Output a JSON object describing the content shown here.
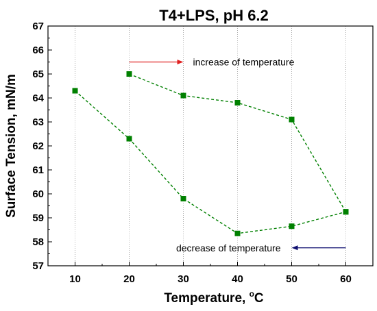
{
  "chart_data": {
    "type": "scatter",
    "title": "T4+LPS, pH 6.2",
    "xlabel_main": "Temperature, ",
    "xlabel_unit": "C",
    "xlabel_degree": "o",
    "ylabel": "Surface Tension, mN/m",
    "xlim": [
      5,
      65
    ],
    "ylim": [
      57,
      67
    ],
    "xticks": [
      10,
      20,
      30,
      40,
      50,
      60
    ],
    "yticks": [
      57,
      58,
      59,
      60,
      61,
      62,
      63,
      64,
      65,
      66,
      67
    ],
    "grid": "vertical-dotted",
    "series": [
      {
        "color": "#008000",
        "line_style": "dashed",
        "marker": "square",
        "points": [
          [
            20,
            65.0
          ],
          [
            30,
            64.1
          ],
          [
            40,
            63.8
          ],
          [
            50,
            63.1
          ],
          [
            60,
            59.25
          ]
        ]
      },
      {
        "color": "#008000",
        "line_style": "dashed",
        "marker": "square",
        "points": [
          [
            10,
            64.3
          ],
          [
            20,
            62.3
          ],
          [
            30,
            59.8
          ],
          [
            40,
            58.35
          ],
          [
            50,
            58.65
          ],
          [
            60,
            59.25
          ]
        ]
      }
    ],
    "annotations": [
      {
        "text": "increase of temperature",
        "arrow_color": "#e02020",
        "arrow_direction": "right",
        "x_from": 20,
        "x_to": 30,
        "y": 65.5
      },
      {
        "text": "decrease of temperature",
        "arrow_color": "#101070",
        "arrow_direction": "left",
        "x_from": 60,
        "x_to": 50,
        "y": 57.75
      }
    ]
  }
}
